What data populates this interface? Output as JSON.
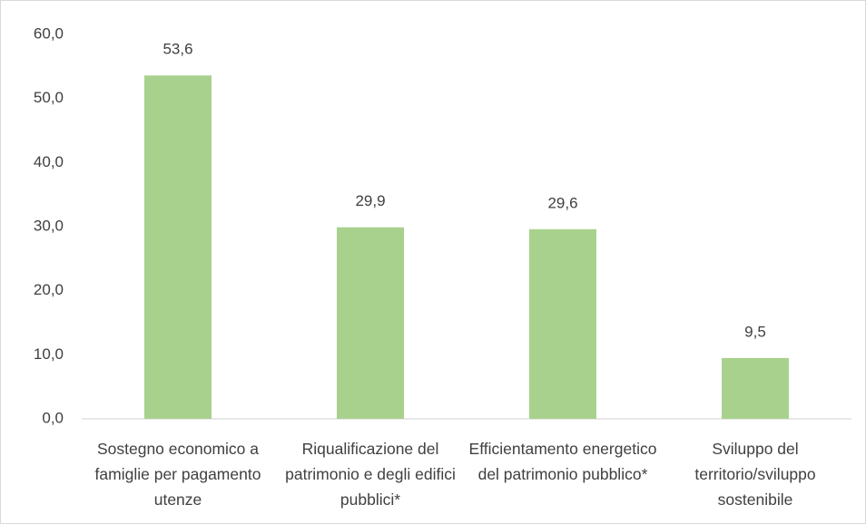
{
  "chart_data": {
    "type": "bar",
    "categories": [
      "Sostegno economico a famiglie per pagamento utenze",
      "Riqualificazione del patrimonio e degli edifici pubblici*",
      "Efficientamento energetico del patrimonio pubblico*",
      "Sviluppo del territorio/sviluppo sostenibile"
    ],
    "values": [
      53.6,
      29.9,
      29.6,
      9.5
    ],
    "value_labels": [
      "53,6",
      "29,9",
      "29,6",
      "9,5"
    ],
    "color": "#a9d18e",
    "ylim": [
      0,
      60
    ],
    "yticks": [
      {
        "value": 0,
        "label": "0,0"
      },
      {
        "value": 10,
        "label": "10,0"
      },
      {
        "value": 20,
        "label": "20,0"
      },
      {
        "value": 30,
        "label": "30,0"
      },
      {
        "value": 40,
        "label": "40,0"
      },
      {
        "value": 50,
        "label": "50,0"
      },
      {
        "value": 60,
        "label": "60,0"
      }
    ],
    "grid": false
  }
}
